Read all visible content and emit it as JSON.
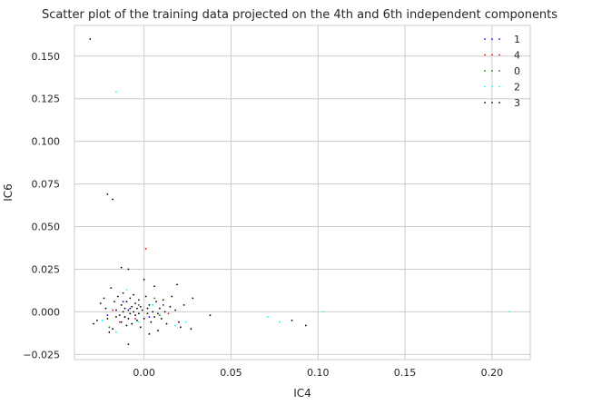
{
  "chart_data": {
    "type": "scatter",
    "title": "Scatter plot of the training data projected on the 4th and 6th independent components",
    "xlabel": "IC4",
    "ylabel": "IC6",
    "xlim": [
      -0.04,
      0.222
    ],
    "ylim": [
      -0.028,
      0.168
    ],
    "xticks": [
      0.0,
      0.05,
      0.1,
      0.15,
      0.2
    ],
    "xtick_labels": [
      "0.00",
      "0.05",
      "0.10",
      "0.15",
      "0.20"
    ],
    "yticks": [
      -0.025,
      0.0,
      0.025,
      0.05,
      0.075,
      0.1,
      0.125,
      0.15
    ],
    "ytick_labels": [
      "−0.025",
      "0.000",
      "0.025",
      "0.050",
      "0.075",
      "0.100",
      "0.125",
      "0.150"
    ],
    "grid": true,
    "legend_position": "top-right",
    "series": [
      {
        "name": "1",
        "color": "#0000ff",
        "points": [
          [
            -0.021,
            -0.002
          ],
          [
            -0.012,
            0.006
          ],
          [
            0.003,
            -0.003
          ],
          [
            -0.008,
            0.002
          ],
          [
            0.011,
            0.004
          ]
        ]
      },
      {
        "name": "4",
        "color": "#ff0000",
        "points": [
          [
            -0.018,
            0.001
          ],
          [
            0.001,
            0.037
          ],
          [
            -0.005,
            -0.004
          ],
          [
            0.014,
            -0.001
          ],
          [
            -0.014,
            -0.006
          ]
        ]
      },
      {
        "name": "0",
        "color": "#008000",
        "points": [
          [
            -0.02,
            -0.009
          ],
          [
            -0.003,
            0.004
          ],
          [
            0.009,
            -0.002
          ],
          [
            -0.011,
            -0.003
          ],
          [
            0.006,
            0.008
          ]
        ]
      },
      {
        "name": "2",
        "color": "#00ffff",
        "points": [
          [
            -0.016,
            0.129
          ],
          [
            -0.024,
            -0.005
          ],
          [
            -0.016,
            -0.012
          ],
          [
            -0.01,
            0.013
          ],
          [
            -0.003,
            -0.006
          ],
          [
            0.005,
            0.004
          ],
          [
            0.018,
            -0.008
          ],
          [
            0.024,
            -0.006
          ],
          [
            0.071,
            -0.003
          ],
          [
            0.078,
            -0.006
          ],
          [
            0.103,
            0.0
          ],
          [
            0.21,
            0.0
          ]
        ]
      },
      {
        "name": "3",
        "color": "#000000",
        "points": [
          [
            -0.031,
            0.16
          ],
          [
            -0.021,
            0.069
          ],
          [
            -0.018,
            0.066
          ],
          [
            -0.013,
            0.026
          ],
          [
            -0.009,
            0.025
          ],
          [
            0.0,
            0.019
          ],
          [
            -0.029,
            -0.007
          ],
          [
            -0.027,
            -0.005
          ],
          [
            -0.025,
            0.005
          ],
          [
            -0.023,
            0.008
          ],
          [
            -0.022,
            0.002
          ],
          [
            -0.021,
            -0.004
          ],
          [
            -0.019,
            0.014
          ],
          [
            -0.018,
            -0.01
          ],
          [
            -0.017,
            0.006
          ],
          [
            -0.016,
            0.001
          ],
          [
            -0.016,
            -0.003
          ],
          [
            -0.015,
            0.009
          ],
          [
            -0.014,
            -0.002
          ],
          [
            -0.013,
            0.004
          ],
          [
            -0.013,
            -0.006
          ],
          [
            -0.012,
            0.0
          ],
          [
            -0.012,
            0.011
          ],
          [
            -0.011,
            -0.003
          ],
          [
            -0.011,
            0.002
          ],
          [
            -0.01,
            -0.008
          ],
          [
            -0.01,
            0.006
          ],
          [
            -0.009,
            0.001
          ],
          [
            -0.009,
            -0.004
          ],
          [
            -0.008,
            0.008
          ],
          [
            -0.008,
            -0.001
          ],
          [
            -0.007,
            0.003
          ],
          [
            -0.007,
            -0.007
          ],
          [
            -0.006,
            0.0
          ],
          [
            -0.006,
            0.01
          ],
          [
            -0.005,
            -0.002
          ],
          [
            -0.005,
            0.005
          ],
          [
            -0.004,
            -0.005
          ],
          [
            -0.004,
            0.002
          ],
          [
            -0.003,
            0.007
          ],
          [
            -0.003,
            -0.001
          ],
          [
            -0.002,
            0.003
          ],
          [
            -0.002,
            -0.009
          ],
          [
            -0.001,
            0.001
          ],
          [
            0.0,
            -0.004
          ],
          [
            0.001,
            0.009
          ],
          [
            0.002,
            0.002
          ],
          [
            0.002,
            -0.001
          ],
          [
            0.003,
            0.004
          ],
          [
            0.004,
            -0.006
          ],
          [
            0.005,
            0.0
          ],
          [
            0.006,
            0.015
          ],
          [
            0.006,
            -0.003
          ],
          [
            0.007,
            0.006
          ],
          [
            0.008,
            -0.001
          ],
          [
            0.009,
            0.002
          ],
          [
            0.01,
            -0.004
          ],
          [
            0.011,
            0.007
          ],
          [
            0.012,
            0.0
          ],
          [
            0.013,
            -0.007
          ],
          [
            0.015,
            0.003
          ],
          [
            0.016,
            0.009
          ],
          [
            0.018,
            0.001
          ],
          [
            0.019,
            0.016
          ],
          [
            0.02,
            -0.006
          ],
          [
            0.021,
            -0.009
          ],
          [
            0.023,
            0.004
          ],
          [
            0.027,
            -0.01
          ],
          [
            0.028,
            0.008
          ],
          [
            0.038,
            -0.002
          ],
          [
            -0.009,
            -0.019
          ],
          [
            0.003,
            -0.013
          ],
          [
            0.008,
            -0.011
          ],
          [
            -0.02,
            -0.012
          ],
          [
            0.085,
            -0.005
          ],
          [
            0.093,
            -0.008
          ]
        ]
      }
    ]
  }
}
